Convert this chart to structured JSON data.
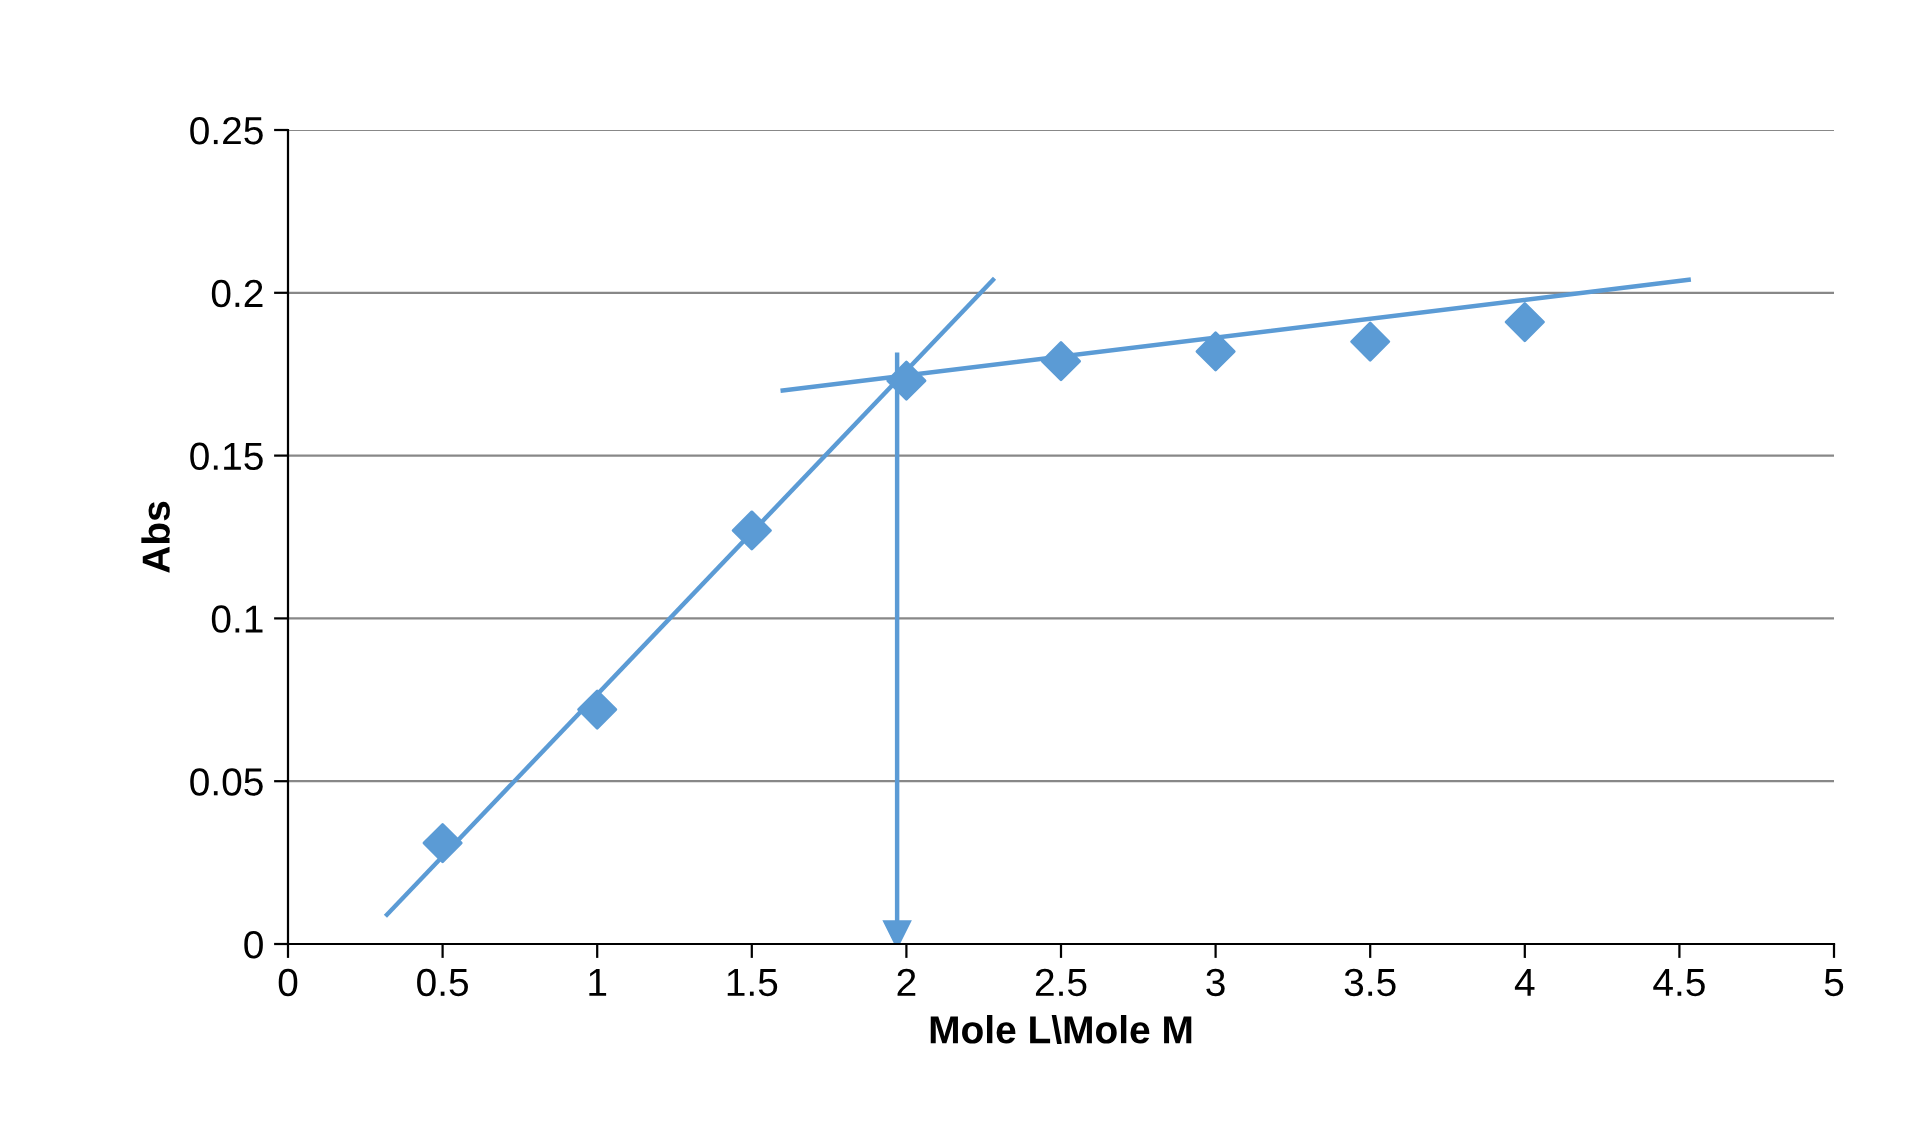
{
  "chart_data": {
    "type": "scatter",
    "xlabel": "Mole L\\Mole M",
    "ylabel": "Abs",
    "xlim": [
      0,
      5
    ],
    "xticks": [
      0,
      0.5,
      1,
      1.5,
      2,
      2.5,
      3,
      3.5,
      4,
      4.5,
      5
    ],
    "ylim": [
      0,
      0.25
    ],
    "yticks": [
      0,
      0.05,
      0.1,
      0.15,
      0.2,
      0.25
    ],
    "grid": "y",
    "marker": "diamond",
    "series": [
      {
        "color": "#5b9bd5",
        "x": [
          0.5,
          1,
          1.5,
          2,
          2.5,
          3,
          3.5,
          4
        ],
        "values": [
          0.031,
          0.072,
          0.127,
          0.173,
          0.179,
          0.182,
          0.185,
          0.191
        ]
      },
      {
        "type": "line",
        "color": "#5b9bd5",
        "marker": "none",
        "x": [
          0.32,
          2.28
        ],
        "values": [
          0.009,
          0.204
        ]
      },
      {
        "type": "line",
        "color": "#5b9bd5",
        "marker": "none",
        "x": [
          1.6,
          4.53
        ],
        "values": [
          0.17,
          0.204
        ]
      },
      {
        "type": "line",
        "color": "#5b9bd5",
        "marker": "triangle",
        "x": [
          1.97,
          1.97
        ],
        "values": [
          0.181,
          0.003
        ]
      }
    ]
  }
}
